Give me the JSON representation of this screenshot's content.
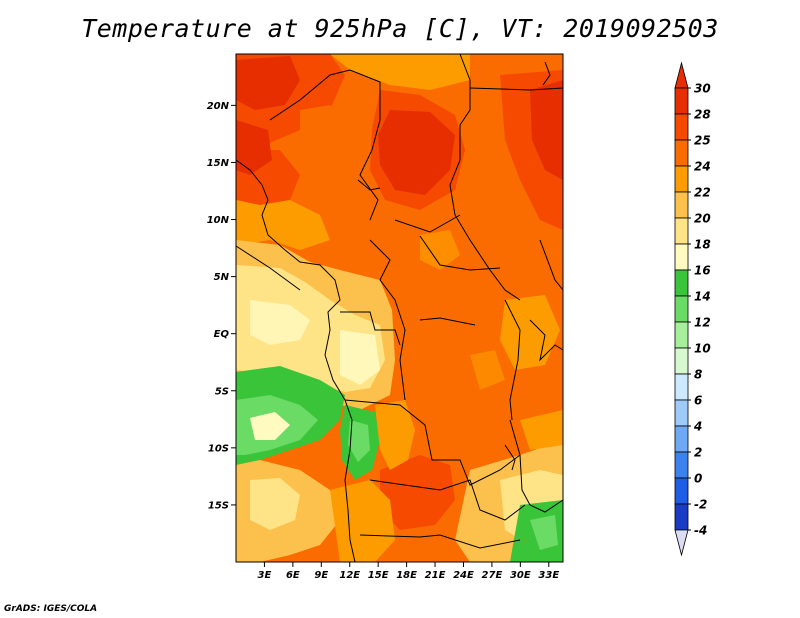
{
  "title": "Temperature at 925hPa [C], VT: 2019092503",
  "footer": "GrADS: IGES/COLA",
  "map": {
    "lat_range": [
      -20,
      24.5
    ],
    "lon_range": [
      0,
      34.5
    ],
    "lat_ticks": [
      {
        "value": 20,
        "label": "20N"
      },
      {
        "value": 15,
        "label": "15N"
      },
      {
        "value": 10,
        "label": "10N"
      },
      {
        "value": 5,
        "label": "5N"
      },
      {
        "value": 0,
        "label": "EQ"
      },
      {
        "value": -5,
        "label": "5S"
      },
      {
        "value": -10,
        "label": "10S"
      },
      {
        "value": -15,
        "label": "15S"
      }
    ],
    "lon_ticks": [
      {
        "value": 3,
        "label": "3E"
      },
      {
        "value": 6,
        "label": "6E"
      },
      {
        "value": 9,
        "label": "9E"
      },
      {
        "value": 12,
        "label": "12E"
      },
      {
        "value": 15,
        "label": "15E"
      },
      {
        "value": 18,
        "label": "18E"
      },
      {
        "value": 21,
        "label": "21E"
      },
      {
        "value": 24,
        "label": "24E"
      },
      {
        "value": 27,
        "label": "27E"
      },
      {
        "value": 30,
        "label": "30E"
      },
      {
        "value": 33,
        "label": "33E"
      }
    ]
  },
  "colorbar": {
    "levels": [
      {
        "label": "30",
        "color": "#e62e00"
      },
      {
        "label": "28",
        "color": "#f54a00"
      },
      {
        "label": "25",
        "color": "#fa6c00"
      },
      {
        "label": "24",
        "color": "#fd9c00"
      },
      {
        "label": "22",
        "color": "#fcc04c"
      },
      {
        "label": "20",
        "color": "#fee487"
      },
      {
        "label": "18",
        "color": "#fffac0"
      },
      {
        "label": "16",
        "color": "#3ac43a"
      },
      {
        "label": "14",
        "color": "#6adc66"
      },
      {
        "label": "12",
        "color": "#a6f09c"
      },
      {
        "label": "10",
        "color": "#d6f9d0"
      },
      {
        "label": "8",
        "color": "#cce9ff"
      },
      {
        "label": "6",
        "color": "#9fcbf8"
      },
      {
        "label": "4",
        "color": "#6eaaf4"
      },
      {
        "label": "2",
        "color": "#3c82ee"
      },
      {
        "label": "0",
        "color": "#1e5ee6"
      },
      {
        "label": "-2",
        "color": "#1a3cc4"
      },
      {
        "label": "-4",
        "color": "#101a7a"
      }
    ],
    "top_color": "#e62e00",
    "bottom_color": "#dcdcf5"
  }
}
